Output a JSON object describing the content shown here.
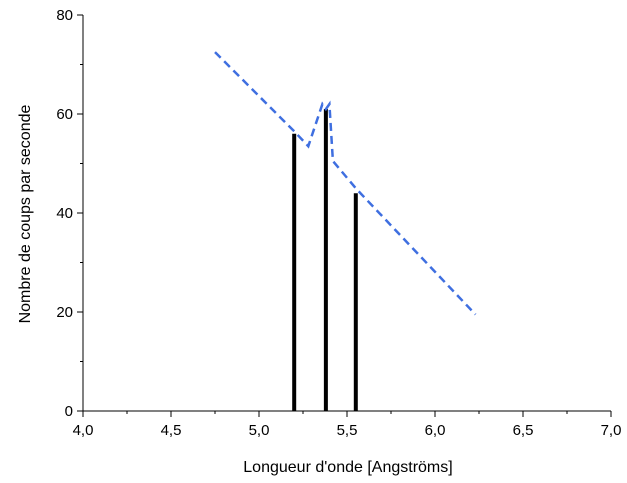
{
  "chart_data": {
    "type": "line",
    "title": "",
    "xlabel": "Longueur d'onde [Angströms]",
    "ylabel": "Nombre de coups par seconde",
    "xlim": [
      4.0,
      7.0
    ],
    "ylim": [
      0,
      80
    ],
    "x_ticks": [
      "4,0",
      "4,5",
      "5,0",
      "5,5",
      "6,0",
      "6,5",
      "7,0"
    ],
    "y_ticks": [
      "0",
      "20",
      "40",
      "60",
      "80"
    ],
    "x_tick_values": [
      4.0,
      4.5,
      5.0,
      5.5,
      6.0,
      6.5,
      7.0
    ],
    "y_tick_values": [
      0,
      20,
      40,
      60,
      80
    ],
    "grid": false,
    "series": [
      {
        "style": "bars",
        "color": "#000000",
        "points": [
          {
            "x": 5.2,
            "y": 56
          },
          {
            "x": 5.38,
            "y": 61
          },
          {
            "x": 5.55,
            "y": 44
          }
        ]
      },
      {
        "style": "dashed-line",
        "color": "#3f6fe0",
        "points": [
          {
            "x": 4.75,
            "y": 72.5
          },
          {
            "x": 5.2,
            "y": 56.5
          },
          {
            "x": 5.28,
            "y": 53.5
          },
          {
            "x": 5.36,
            "y": 62
          },
          {
            "x": 5.38,
            "y": 61
          },
          {
            "x": 5.4,
            "y": 62
          },
          {
            "x": 5.42,
            "y": 50.5
          },
          {
            "x": 5.55,
            "y": 45
          },
          {
            "x": 6.23,
            "y": 19.5
          }
        ]
      }
    ]
  }
}
